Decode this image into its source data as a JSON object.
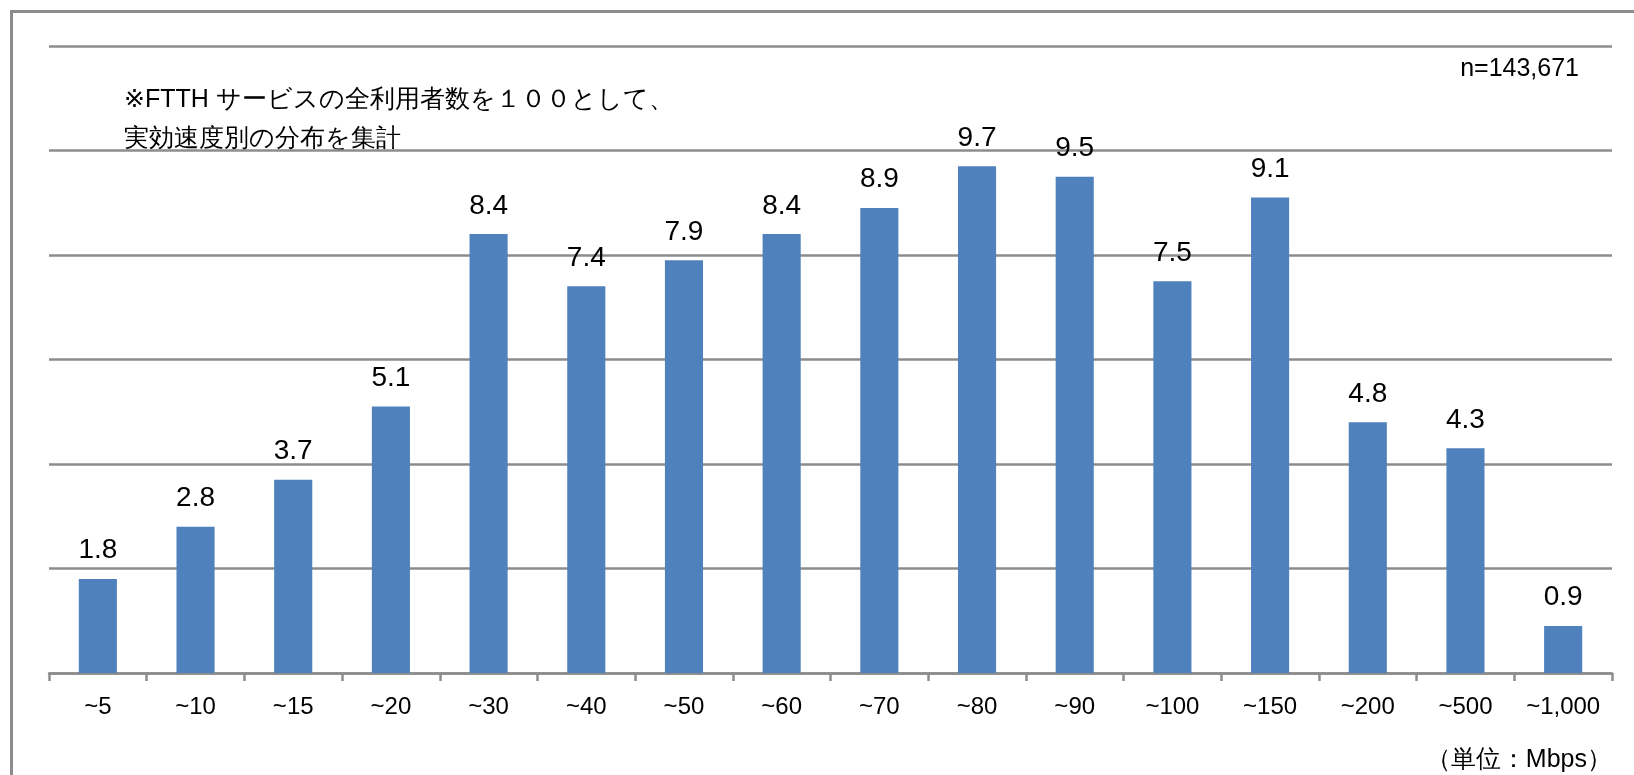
{
  "chart_data": {
    "type": "bar",
    "categories": [
      "~5",
      "~10",
      "~15",
      "~20",
      "~30",
      "~40",
      "~50",
      "~60",
      "~70",
      "~80",
      "~90",
      "~100",
      "~150",
      "~200",
      "~500",
      "~1,000"
    ],
    "values": [
      1.8,
      2.8,
      3.7,
      5.1,
      8.4,
      7.4,
      7.9,
      8.4,
      8.9,
      9.7,
      9.5,
      7.5,
      9.1,
      4.8,
      4.3,
      0.9
    ],
    "color": "#4f81bd",
    "ylim": [
      0,
      12
    ],
    "yticks": [
      {
        "value": 0,
        "label": null
      },
      {
        "value": 2,
        "label": null
      },
      {
        "value": 4,
        "label": null
      },
      {
        "value": 6,
        "label": null
      },
      {
        "value": 8,
        "label": null
      },
      {
        "value": 10,
        "label": null
      },
      {
        "value": 12,
        "label": null
      }
    ],
    "grid": "y",
    "tick_labels": "x",
    "data_labels": true,
    "xlabel": "（単位：Mbps）",
    "annotations": [
      "※FTTH サービスの全利用者数を１００として、実効速度別の分布を集計",
      "n=143,671"
    ]
  }
}
